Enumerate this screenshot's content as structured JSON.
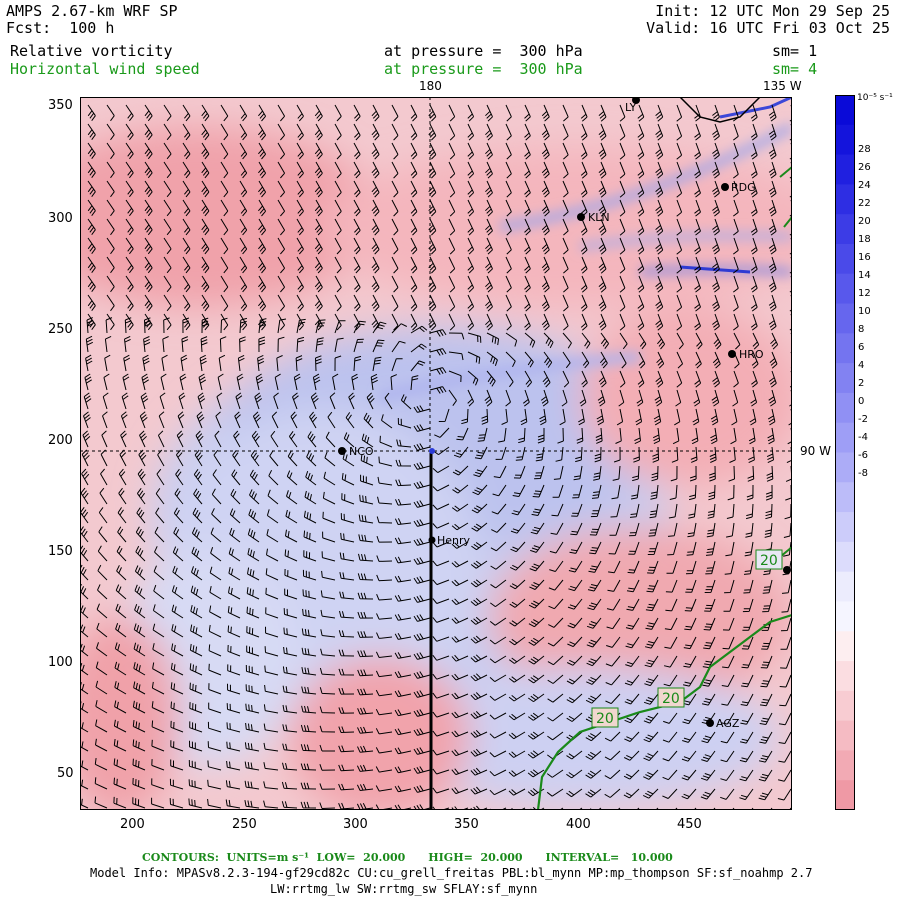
{
  "header": {
    "model": "AMPS 2.67-km WRF SP",
    "fcst": "Fcst:  100 h",
    "init": "Init: 12 UTC Mon 29 Sep 25",
    "valid": "Valid: 16 UTC Fri 03 Oct 25",
    "field1": "Relative vorticity",
    "field1_level": "at pressure =  300 hPa",
    "field1_sm": "sm= 1",
    "field2": "Horizontal wind speed",
    "field2_level": "at pressure =  300 hPa",
    "field2_sm": "sm= 4"
  },
  "map": {
    "x_ticks": [
      "200",
      "250",
      "300",
      "350",
      "400",
      "450"
    ],
    "y_ticks": [
      "50",
      "100",
      "150",
      "200",
      "250",
      "300",
      "350"
    ],
    "meridian_labels": [
      "180",
      "135 W"
    ],
    "parallel_label": "90 W",
    "stations": [
      {
        "id": "LY",
        "label": "LY"
      },
      {
        "id": "RDG",
        "label": "RDG"
      },
      {
        "id": "KLN",
        "label": "KLN"
      },
      {
        "id": "HRO",
        "label": "HRO"
      },
      {
        "id": "NCO",
        "label": "NCO"
      },
      {
        "id": "Henry",
        "label": "Henry"
      },
      {
        "id": "AGZ",
        "label": "AGZ"
      }
    ],
    "contour_labels": [
      "20",
      "20",
      "20"
    ]
  },
  "colorbar": {
    "unit": "10⁻⁵ s⁻¹",
    "ticks": [
      "28",
      "26",
      "24",
      "22",
      "20",
      "18",
      "16",
      "14",
      "12",
      "10",
      "8",
      "6",
      "4",
      "2",
      "0",
      "-2",
      "-4",
      "-6",
      "-8"
    ]
  },
  "footer": {
    "contours": "CONTOURS:  UNITS=m s⁻¹  LOW=  20.000      HIGH=  20.000      INTERVAL=   10.000",
    "model_info": "Model Info: MPASv8.2.3-194-gf29cd82c CU:cu_grell_freitas PBL:bl_mynn MP:mp_thompson SF:sf_noahmp 2.7",
    "model_info2": "LW:rrtmg_lw SW:rrtmg_sw SFLAY:sf_mynn"
  }
}
